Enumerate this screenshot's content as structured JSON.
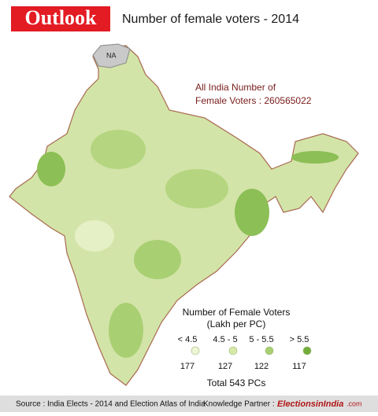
{
  "header": {
    "logo": "Outlook",
    "title": "Number of female voters - 2014"
  },
  "map": {
    "na_label": "NA",
    "annotation": [
      "All India Number of",
      "Female Voters : 260565022"
    ]
  },
  "legend": {
    "title": [
      "Number of Female Voters",
      "(Lakh per PC)"
    ],
    "classes": [
      {
        "label": "< 4.5",
        "count": 177,
        "color": "#eef5d6"
      },
      {
        "label": "4.5 - 5",
        "count": 127,
        "color": "#d6e9a8"
      },
      {
        "label": "5 - 5.5",
        "count": 122,
        "color": "#a9cf73"
      },
      {
        "label": "> 5.5",
        "count": 117,
        "color": "#72ad3c"
      }
    ],
    "total": "Total 543 PCs"
  },
  "footer": {
    "source": "Source : India Elects - 2014 and Election Atlas of India",
    "partner_label": "Knowledge Partner :",
    "partner": "ElectionsinIndia",
    "partner_suffix": ".com"
  }
}
